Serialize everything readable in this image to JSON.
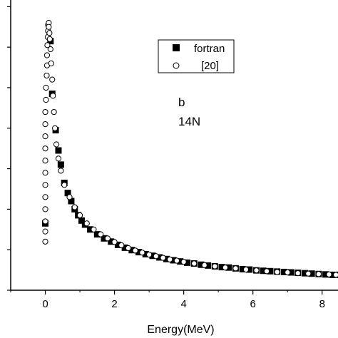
{
  "chart_data": {
    "type": "scatter",
    "title": "",
    "xlabel": "Energy(MeV)",
    "ylabel": "",
    "xlim": [
      -1.0,
      8.5
    ],
    "ylim": [
      0,
      7.2
    ],
    "x_ticks": [
      0,
      2,
      4,
      6,
      8
    ],
    "x_tick_labels": [
      "0",
      "2",
      "4",
      "6",
      "8"
    ],
    "y_ticks": [
      0,
      1,
      2,
      3,
      4,
      5,
      6,
      7
    ],
    "grid": false,
    "legend_position": "top-right",
    "annotations": [
      "b",
      "14N"
    ],
    "series": [
      {
        "name": "fortran",
        "marker": "filled-square",
        "color": "#000000",
        "x": [
          0.0,
          0.15,
          0.2,
          0.3,
          0.38,
          0.45,
          0.55,
          0.65,
          0.75,
          0.85,
          0.95,
          1.05,
          1.15,
          1.3,
          1.5,
          1.7,
          1.9,
          2.1,
          2.3,
          2.5,
          2.7,
          2.9,
          3.1,
          3.3,
          3.5,
          3.7,
          3.9,
          4.1,
          4.3,
          4.5,
          4.7,
          4.9,
          5.1,
          5.3,
          5.5,
          5.7,
          5.9,
          6.1,
          6.3,
          6.5,
          6.7,
          6.9,
          7.1,
          7.3,
          7.5,
          7.7,
          7.9,
          8.1,
          8.3,
          8.5
        ],
        "y": [
          1.65,
          6.15,
          4.85,
          3.95,
          3.45,
          3.1,
          2.65,
          2.4,
          2.2,
          2.0,
          1.85,
          1.72,
          1.62,
          1.5,
          1.38,
          1.28,
          1.2,
          1.12,
          1.05,
          0.99,
          0.94,
          0.89,
          0.85,
          0.81,
          0.77,
          0.74,
          0.71,
          0.68,
          0.66,
          0.63,
          0.61,
          0.59,
          0.57,
          0.56,
          0.54,
          0.52,
          0.51,
          0.49,
          0.48,
          0.47,
          0.46,
          0.45,
          0.44,
          0.43,
          0.42,
          0.41,
          0.4,
          0.39,
          0.38,
          0.38
        ]
      },
      {
        "name": "[20]",
        "marker": "open-circle",
        "color": "#000000",
        "x": [
          0.0,
          0.0,
          0.0,
          0.0,
          0.0,
          0.0,
          0.0,
          0.0,
          0.0,
          0.0,
          0.0,
          0.0,
          0.02,
          0.02,
          0.04,
          0.05,
          0.05,
          0.06,
          0.07,
          0.08,
          0.08,
          0.1,
          0.1,
          0.12,
          0.13,
          0.15,
          0.17,
          0.2,
          0.22,
          0.25,
          0.28,
          0.32,
          0.38,
          0.45,
          0.55,
          0.7,
          0.85,
          1.0,
          1.2,
          1.4,
          1.6,
          1.8,
          2.0,
          2.2,
          2.4,
          2.6,
          2.8,
          3.0,
          3.2,
          3.4,
          3.6,
          3.8,
          4.0,
          4.3,
          4.6,
          4.9,
          5.2,
          5.5,
          5.8,
          6.1,
          6.4,
          6.7,
          7.0,
          7.3,
          7.6,
          7.9,
          8.2,
          8.4
        ],
        "y": [
          1.2,
          1.45,
          1.7,
          2.0,
          2.3,
          2.6,
          2.9,
          3.2,
          3.5,
          3.8,
          4.1,
          4.4,
          4.7,
          5.0,
          5.3,
          5.55,
          5.8,
          6.05,
          6.25,
          6.4,
          6.55,
          6.6,
          6.5,
          6.35,
          6.2,
          5.95,
          5.6,
          5.2,
          4.8,
          4.4,
          4.0,
          3.6,
          3.25,
          2.95,
          2.6,
          2.3,
          2.05,
          1.85,
          1.65,
          1.5,
          1.38,
          1.28,
          1.19,
          1.11,
          1.04,
          0.98,
          0.93,
          0.88,
          0.84,
          0.8,
          0.76,
          0.73,
          0.7,
          0.66,
          0.62,
          0.59,
          0.56,
          0.54,
          0.51,
          0.49,
          0.47,
          0.45,
          0.44,
          0.42,
          0.41,
          0.4,
          0.39,
          0.38
        ]
      }
    ]
  }
}
